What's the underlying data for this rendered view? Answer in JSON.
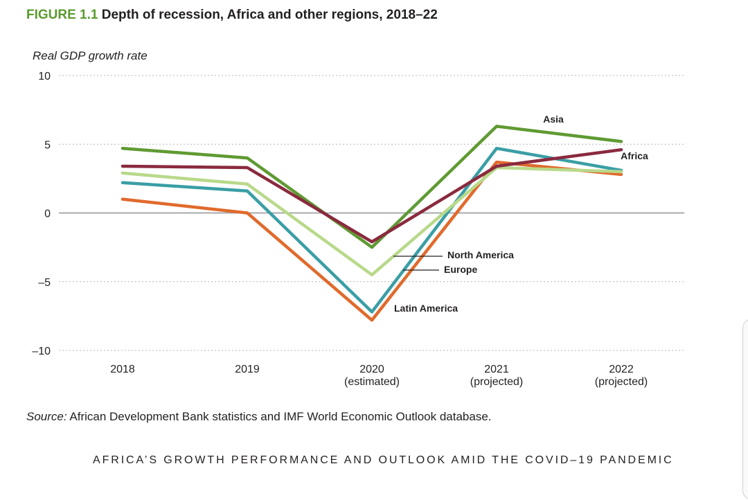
{
  "figure": {
    "label": "FIGURE 1.1",
    "title": "Depth of recession, Africa and other regions, 2018–22"
  },
  "source": {
    "prefix": "Source:",
    "text": "African Development Bank statistics and IMF World Economic Outlook database."
  },
  "footer": {
    "running_title": "AFRICA’S GROWTH PERFORMANCE AND OUTLOOK AMID THE COVID–19 PANDEMIC"
  },
  "chart_data": {
    "type": "line",
    "title": "Depth of recession, Africa and other regions, 2018–22",
    "ylabel": "Real GDP growth rate",
    "xlabel": "",
    "ylim": [
      -10,
      10
    ],
    "yticks": [
      10,
      5,
      0,
      -5,
      -10
    ],
    "ytick_labels": [
      "10",
      "5",
      "0",
      "–5",
      "–10"
    ],
    "grid": "dotted horizontal",
    "categories": [
      {
        "line1": "2018",
        "line2": ""
      },
      {
        "line1": "2019",
        "line2": ""
      },
      {
        "line1": "2020",
        "line2": "(estimated)"
      },
      {
        "line1": "2021",
        "line2": "(projected)"
      },
      {
        "line1": "2022",
        "line2": "(projected)"
      }
    ],
    "series": [
      {
        "name": "Latin America",
        "color": "#e06a2c",
        "values": [
          1.0,
          0.0,
          -7.8,
          3.7,
          2.8
        ]
      },
      {
        "name": "Europe",
        "color": "#3a9ea5",
        "values": [
          2.2,
          1.6,
          -7.2,
          4.7,
          3.1
        ]
      },
      {
        "name": "North America",
        "color": "#b8d98a",
        "values": [
          2.9,
          2.1,
          -4.5,
          3.3,
          3.0
        ]
      },
      {
        "name": "Asia",
        "color": "#5f9a32",
        "values": [
          4.7,
          4.0,
          -2.5,
          6.3,
          5.2
        ]
      },
      {
        "name": "Africa",
        "color": "#8a2a3e",
        "values": [
          3.4,
          3.3,
          -2.1,
          3.4,
          4.6
        ]
      }
    ],
    "annotations": [
      {
        "series": "Asia",
        "text": "Asia"
      },
      {
        "series": "Africa",
        "text": "Africa"
      },
      {
        "series": "North America",
        "text": "North America"
      },
      {
        "series": "Europe",
        "text": "Europe"
      },
      {
        "series": "Latin America",
        "text": "Latin America"
      }
    ]
  }
}
